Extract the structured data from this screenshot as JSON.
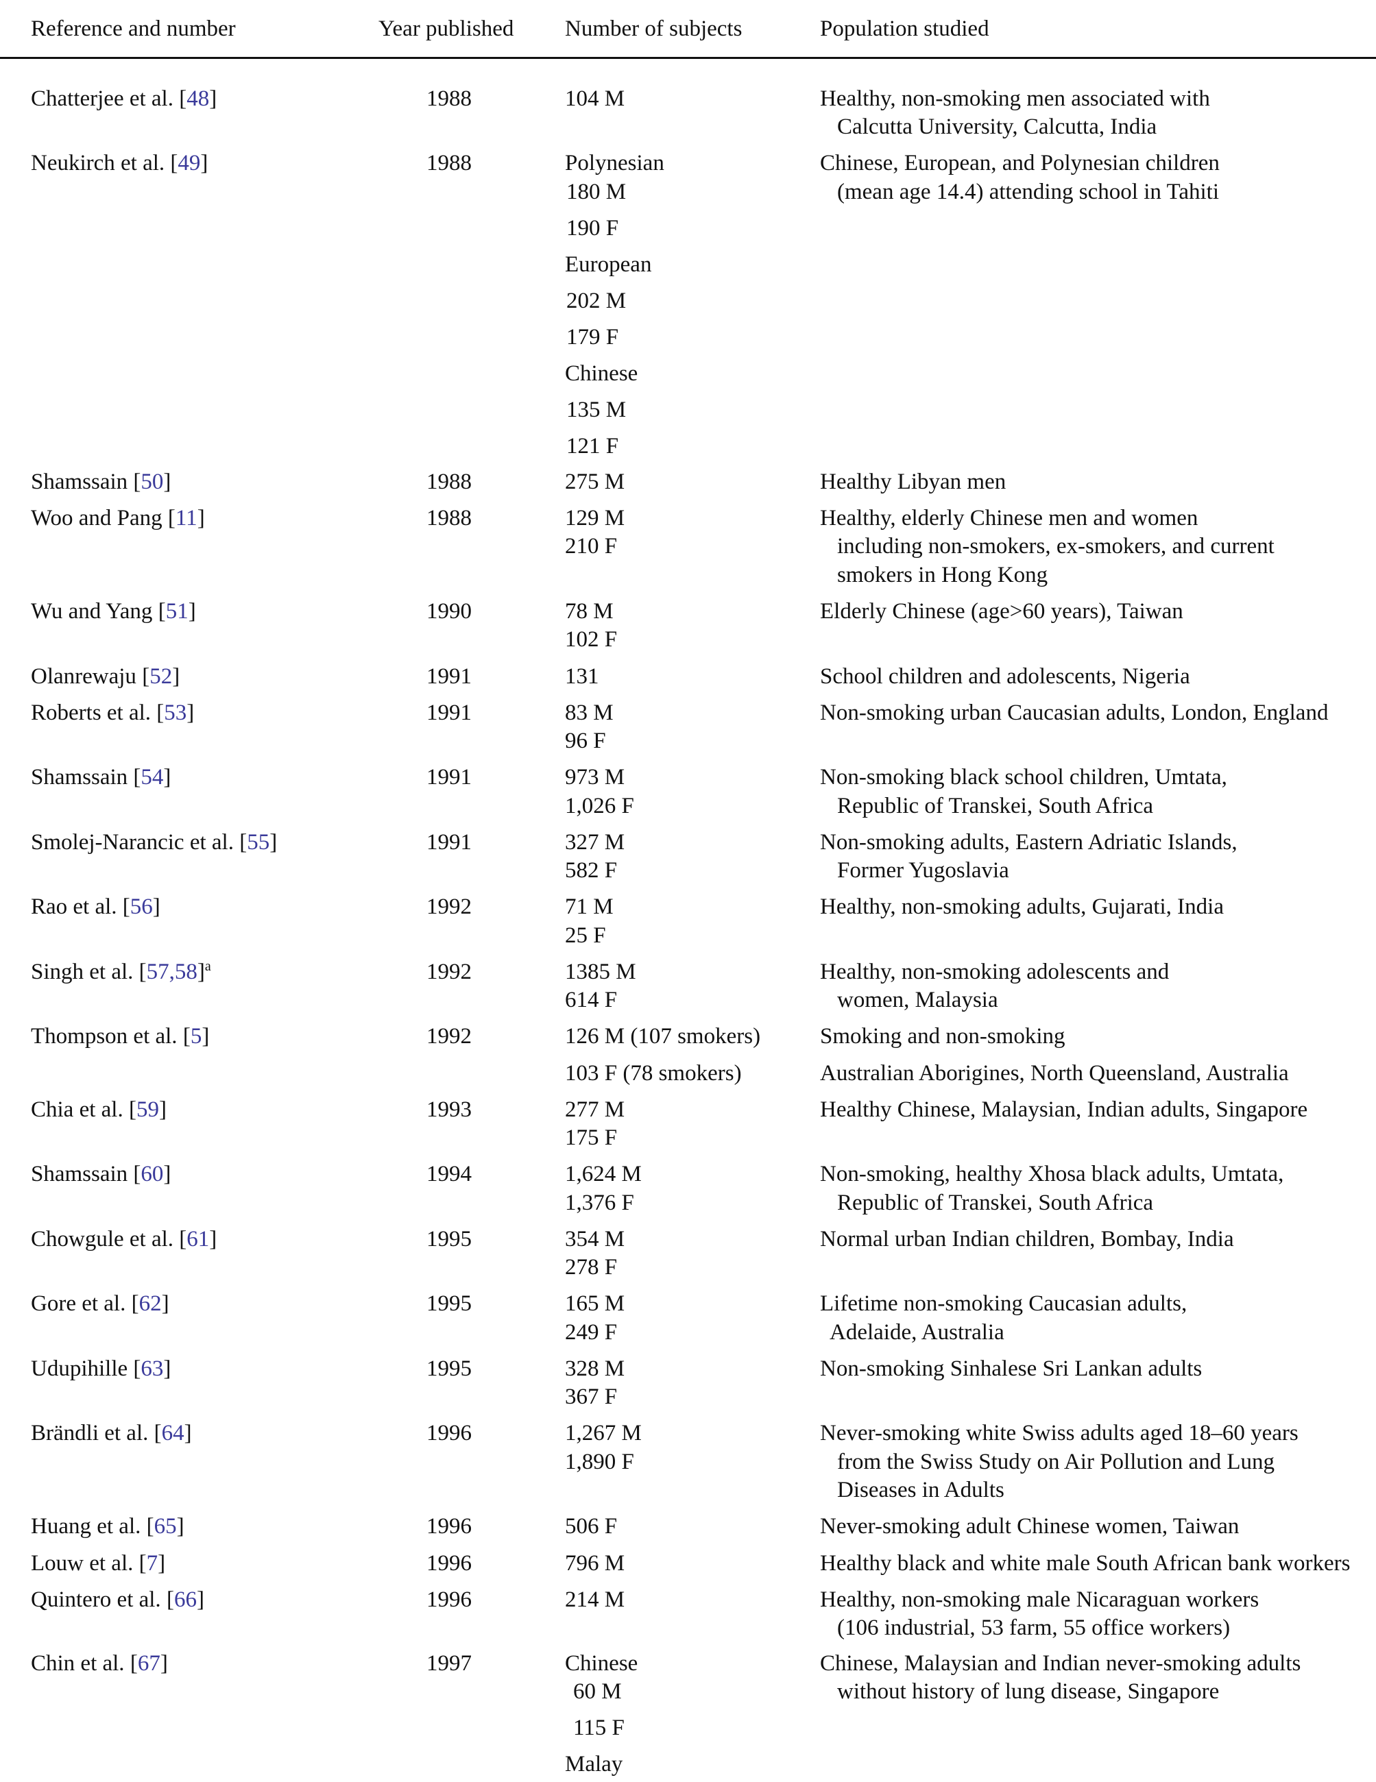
{
  "header": {
    "reference": "Reference and number",
    "year": "Year published",
    "subjects": "Number of subjects",
    "population": "Population studied"
  },
  "colors": {
    "link": "#3a3a9a",
    "text": "#111111"
  },
  "rows": [
    {
      "author": "Chatterjee et al. ",
      "refs": "48",
      "year": "1988",
      "subjects": [
        "104 M"
      ],
      "population": [
        "Healthy, non-smoking men associated with",
        "Calcutta University, Calcutta, India"
      ]
    },
    {
      "author": "Neukirch et al. ",
      "refs": "49",
      "year": "1988",
      "subjects": [
        "Polynesian",
        "180 M",
        "190 F",
        "European",
        "202 M",
        "179 F",
        "Chinese",
        "135 M",
        "121 F"
      ],
      "population": [
        "Chinese, European, and Polynesian children",
        "(mean age 14.4) attending school in Tahiti"
      ]
    },
    {
      "author": "Shamssain ",
      "refs": "50",
      "year": "1988",
      "subjects": [
        "275 M"
      ],
      "population": [
        "Healthy Libyan men"
      ]
    },
    {
      "author": "Woo and Pang ",
      "refs": "11",
      "year": "1988",
      "subjects": [
        "129 M",
        "210 F"
      ],
      "population": [
        "Healthy, elderly Chinese men and women",
        "including non-smokers, ex-smokers, and current",
        "smokers in Hong Kong"
      ]
    },
    {
      "author": "Wu and Yang ",
      "refs": "51",
      "year": "1990",
      "subjects": [
        "78 M",
        "102 F"
      ],
      "population": [
        "Elderly Chinese (age>60 years), Taiwan"
      ]
    },
    {
      "author": "Olanrewaju ",
      "refs": "52",
      "year": "1991",
      "subjects": [
        "131"
      ],
      "population": [
        "School children and adolescents, Nigeria"
      ]
    },
    {
      "author": "Roberts et al. ",
      "refs": "53",
      "year": "1991",
      "subjects": [
        "83 M",
        "96 F"
      ],
      "population": [
        "Non-smoking urban Caucasian adults, London, England"
      ]
    },
    {
      "author": "Shamssain ",
      "refs": "54",
      "year": "1991",
      "subjects": [
        "973 M",
        "1,026 F"
      ],
      "population": [
        "Non-smoking black school children, Umtata,",
        "Republic of Transkei, South Africa"
      ]
    },
    {
      "author": "Smolej-Narancic et al. ",
      "refs": "55",
      "year": "1991",
      "subjects": [
        "327 M",
        "582 F"
      ],
      "population": [
        "Non-smoking adults, Eastern Adriatic Islands,",
        "Former Yugoslavia"
      ]
    },
    {
      "author": "Rao et al. ",
      "refs": "56",
      "year": "1992",
      "subjects": [
        "71 M",
        "25 F"
      ],
      "population": [
        "Healthy, non-smoking adults, Gujarati, India"
      ]
    },
    {
      "author": "Singh et al. ",
      "refs": "57,58",
      "sup": "a",
      "year": "1992",
      "subjects": [
        "1385 M",
        "614 F"
      ],
      "population": [
        "Healthy, non-smoking adolescents and",
        "women, Malaysia"
      ]
    },
    {
      "author": "Thompson et al. ",
      "refs": "5",
      "year": "1992",
      "subjects": [
        "126 M (107 smokers)",
        "103 F (78 smokers)"
      ],
      "population": [
        "Smoking and non-smoking",
        "Australian Aborigines, North Queensland, Australia"
      ]
    },
    {
      "author": "Chia et al. ",
      "refs": "59",
      "year": "1993",
      "subjects": [
        "277 M",
        "175 F"
      ],
      "population": [
        "Healthy Chinese, Malaysian, Indian adults, Singapore"
      ]
    },
    {
      "author": "Shamssain ",
      "refs": "60",
      "year": "1994",
      "subjects": [
        "1,624 M",
        "1,376 F"
      ],
      "population": [
        "Non-smoking, healthy Xhosa black adults, Umtata,",
        "Republic of Transkei, South Africa"
      ]
    },
    {
      "author": "Chowgule et al. ",
      "refs": "61",
      "year": "1995",
      "subjects": [
        "354 M",
        "278 F"
      ],
      "population": [
        "Normal urban Indian children, Bombay, India"
      ]
    },
    {
      "author": "Gore et al. ",
      "refs": "62",
      "year": "1995",
      "subjects": [
        "165 M",
        "249 F"
      ],
      "population": [
        "Lifetime non-smoking Caucasian adults,",
        "Adelaide, Australia"
      ]
    },
    {
      "author": "Udupihille ",
      "refs": "63",
      "year": "1995",
      "subjects": [
        "328 M",
        "367 F"
      ],
      "population": [
        "Non-smoking Sinhalese Sri Lankan adults"
      ]
    },
    {
      "author": "Brändli et al. ",
      "refs": "64",
      "year": "1996",
      "subjects": [
        "1,267 M",
        "1,890 F"
      ],
      "population": [
        "Never-smoking white Swiss adults aged 18–60 years",
        "from the Swiss Study on Air Pollution and Lung",
        "Diseases in Adults"
      ]
    },
    {
      "author": "Huang et al. ",
      "refs": "65",
      "year": "1996",
      "subjects": [
        "506 F"
      ],
      "population": [
        "Never-smoking adult Chinese women, Taiwan"
      ]
    },
    {
      "author": "Louw et al. ",
      "refs": "7",
      "year": "1996",
      "subjects": [
        "796 M"
      ],
      "population": [
        "Healthy black and white male South African bank workers"
      ]
    },
    {
      "author": "Quintero et al. ",
      "refs": "66",
      "year": "1996",
      "subjects": [
        "214 M"
      ],
      "population": [
        "Healthy, non-smoking male Nicaraguan workers",
        "(106 industrial, 53 farm, 55 office workers)"
      ]
    },
    {
      "author": "Chin et al. ",
      "refs": "67",
      "year": "1997",
      "subjects": [
        "Chinese",
        "60 M",
        "115 F",
        "Malay"
      ],
      "population": [
        "Chinese, Malaysian and Indian never-smoking adults",
        "without history of lung disease, Singapore"
      ]
    }
  ]
}
